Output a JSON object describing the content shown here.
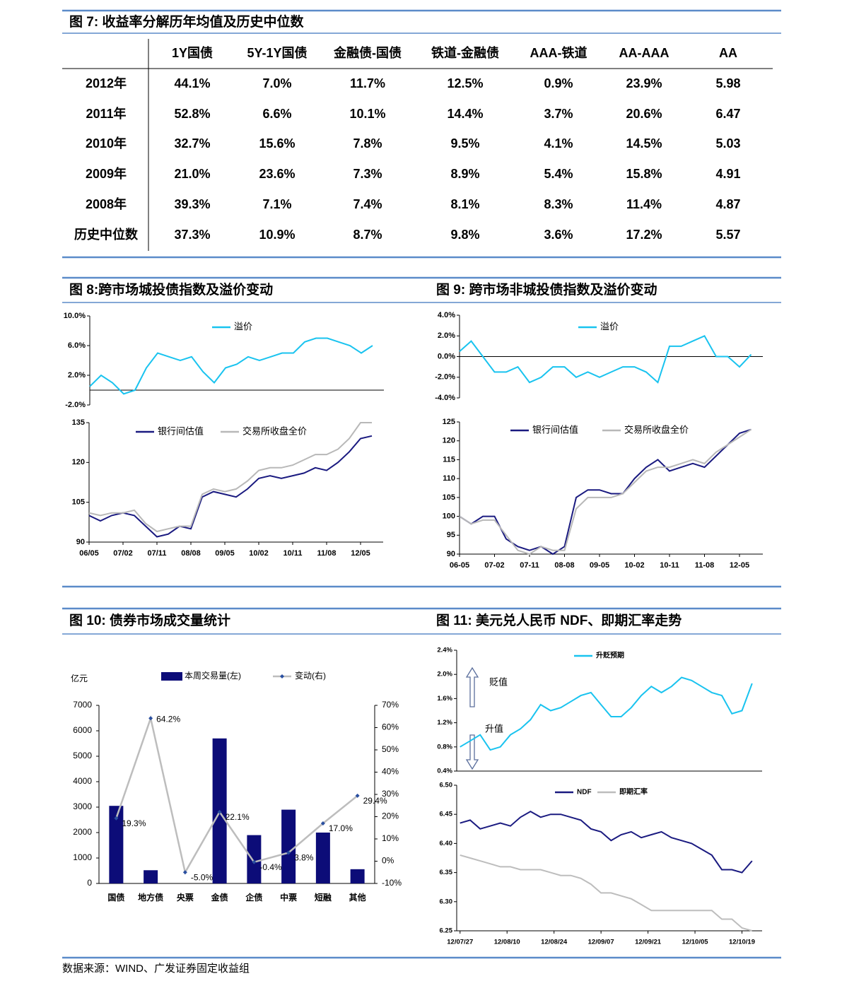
{
  "table": {
    "title": "图 7: 收益率分解历年均值及历史中位数",
    "columns": [
      "1Y国债",
      "5Y-1Y国债",
      "金融债-国债",
      "铁道-金融债",
      "AAA-铁道",
      "AA-AAA",
      "AA"
    ],
    "rows": [
      {
        "label": "2012年",
        "values": [
          "44.1%",
          "7.0%",
          "11.7%",
          "12.5%",
          "0.9%",
          "23.9%",
          "5.98"
        ]
      },
      {
        "label": "2011年",
        "values": [
          "52.8%",
          "6.6%",
          "10.1%",
          "14.4%",
          "3.7%",
          "20.6%",
          "6.47"
        ]
      },
      {
        "label": "2010年",
        "values": [
          "32.7%",
          "15.6%",
          "7.8%",
          "9.5%",
          "4.1%",
          "14.5%",
          "5.03"
        ]
      },
      {
        "label": "2009年",
        "values": [
          "21.0%",
          "23.6%",
          "7.3%",
          "8.9%",
          "5.4%",
          "15.8%",
          "4.91"
        ]
      },
      {
        "label": "2008年",
        "values": [
          "39.3%",
          "7.1%",
          "7.4%",
          "8.1%",
          "8.3%",
          "11.4%",
          "4.87"
        ]
      },
      {
        "label": "历史中位数",
        "values": [
          "37.3%",
          "10.9%",
          "8.7%",
          "9.8%",
          "3.6%",
          "17.2%",
          "5.57"
        ]
      }
    ]
  },
  "chart_data": [
    {
      "type": "line",
      "title": "图 8:跨市场城投债指数及溢价变动",
      "zero_line": true,
      "legend": "top",
      "x": [
        0,
        3,
        6,
        9,
        12,
        15,
        18,
        21,
        24,
        27,
        30,
        33,
        36,
        39,
        42,
        45,
        48,
        51,
        54,
        57,
        60,
        63,
        66,
        69,
        72,
        75
      ],
      "xlim": [
        0,
        78
      ],
      "ylim": [
        -2,
        10
      ],
      "yticks": [
        {
          "value": 10,
          "label": "10.0%"
        },
        {
          "value": 6,
          "label": "6.0%"
        },
        {
          "value": 2,
          "label": "2.0%"
        },
        {
          "value": -2,
          "label": "-2.0%"
        }
      ],
      "series": [
        {
          "name": "溢价",
          "color": "#19c3ef",
          "values": [
            0.5,
            2,
            1,
            -0.5,
            0,
            3,
            5,
            4.5,
            4,
            4.5,
            2.5,
            1,
            3,
            3.5,
            4.5,
            4,
            4.5,
            5,
            5,
            6.5,
            7,
            7,
            6.5,
            6,
            5,
            6
          ]
        }
      ]
    },
    {
      "type": "line",
      "legend": "top",
      "x": [
        0,
        3,
        6,
        9,
        12,
        15,
        18,
        21,
        24,
        27,
        30,
        33,
        36,
        39,
        42,
        45,
        48,
        51,
        54,
        57,
        60,
        63,
        66,
        69,
        72,
        75
      ],
      "xlim": [
        0,
        78
      ],
      "ylim": [
        90,
        135
      ],
      "yticks": [
        135,
        120,
        105,
        90
      ],
      "xticks": [
        {
          "value": 0,
          "label": "06/05"
        },
        {
          "value": 9,
          "label": "07/02"
        },
        {
          "value": 18,
          "label": "07/11"
        },
        {
          "value": 27,
          "label": "08/08"
        },
        {
          "value": 36,
          "label": "09/05"
        },
        {
          "value": 45,
          "label": "10/02"
        },
        {
          "value": 54,
          "label": "10/11"
        },
        {
          "value": 63,
          "label": "11/08"
        },
        {
          "value": 72,
          "label": "12/05"
        }
      ],
      "series": [
        {
          "name": "银行间估值",
          "color": "#1a1a80",
          "values": [
            100,
            98,
            100,
            101,
            100,
            96,
            92,
            93,
            96,
            95,
            107,
            109,
            108,
            107,
            110,
            114,
            115,
            114,
            115,
            116,
            118,
            117,
            120,
            124,
            129,
            130
          ]
        },
        {
          "name": "交易所收盘全价",
          "color": "#b8b8b8",
          "values": [
            101,
            100,
            101,
            101,
            102,
            97,
            94,
            95,
            96,
            96,
            108,
            110,
            109,
            110,
            113,
            117,
            118,
            118,
            119,
            121,
            123,
            123,
            125,
            129,
            135,
            135
          ]
        }
      ]
    },
    {
      "type": "line",
      "title": "图 9: 跨市场非城投债指数及溢价变动",
      "zero_line": true,
      "legend": "top",
      "x": [
        0,
        3,
        6,
        9,
        12,
        15,
        18,
        21,
        24,
        27,
        30,
        33,
        36,
        39,
        42,
        45,
        48,
        51,
        54,
        57,
        60,
        63,
        66,
        69,
        72,
        75
      ],
      "xlim": [
        0,
        78
      ],
      "ylim": [
        -4,
        4
      ],
      "yticks": [
        {
          "value": 4,
          "label": "4.0%"
        },
        {
          "value": 2,
          "label": "2.0%"
        },
        {
          "value": 0,
          "label": "0.0%"
        },
        {
          "value": -2,
          "label": "-2.0%"
        },
        {
          "value": -4,
          "label": "-4.0%"
        }
      ],
      "series": [
        {
          "name": "溢价",
          "color": "#19c3ef",
          "values": [
            0.5,
            1.5,
            0,
            -1.5,
            -1.5,
            -1,
            -2.5,
            -2,
            -1,
            -1,
            -2,
            -1.5,
            -2,
            -1.5,
            -1,
            -1,
            -1.5,
            -2.5,
            1,
            1,
            1.5,
            2,
            0,
            0,
            -1,
            0.2
          ]
        }
      ]
    },
    {
      "type": "line",
      "legend": "top",
      "x": [
        0,
        3,
        6,
        9,
        12,
        15,
        18,
        21,
        24,
        27,
        30,
        33,
        36,
        39,
        42,
        45,
        48,
        51,
        54,
        57,
        60,
        63,
        66,
        69,
        72,
        75
      ],
      "xlim": [
        0,
        78
      ],
      "ylim": [
        90,
        125
      ],
      "yticks": [
        125,
        120,
        115,
        110,
        105,
        100,
        95,
        90
      ],
      "xticks": [
        {
          "value": 0,
          "label": "06-05"
        },
        {
          "value": 9,
          "label": "07-02"
        },
        {
          "value": 18,
          "label": "07-11"
        },
        {
          "value": 27,
          "label": "08-08"
        },
        {
          "value": 36,
          "label": "09-05"
        },
        {
          "value": 45,
          "label": "10-02"
        },
        {
          "value": 54,
          "label": "10-11"
        },
        {
          "value": 63,
          "label": "11-08"
        },
        {
          "value": 72,
          "label": "12-05"
        }
      ],
      "series": [
        {
          "name": "银行间估值",
          "color": "#1a1a80",
          "values": [
            100,
            98,
            100,
            100,
            94,
            92,
            91,
            92,
            90,
            92,
            105,
            107,
            107,
            106,
            106,
            110,
            113,
            115,
            112,
            113,
            114,
            113,
            116,
            119,
            122,
            123
          ]
        },
        {
          "name": "交易所收盘全价",
          "color": "#b8b8b8",
          "values": [
            100,
            98,
            99,
            99,
            95,
            91,
            90,
            92,
            91,
            91,
            102,
            105,
            105,
            105,
            106,
            109,
            112,
            113,
            113,
            114,
            115,
            114,
            117,
            119,
            121,
            123
          ]
        }
      ]
    },
    {
      "type": "bar",
      "title": "图 10: 债券市场成交量统计",
      "ylabel": "亿元",
      "legend": "top",
      "categories": [
        "国债",
        "地方债",
        "央票",
        "金债",
        "企债",
        "中票",
        "短融",
        "其他"
      ],
      "ylim": [
        0,
        7000
      ],
      "yticks": [
        7000,
        6000,
        5000,
        4000,
        3000,
        2000,
        1000,
        0
      ],
      "y2lim": [
        -10,
        70
      ],
      "y2ticks": [
        {
          "value": 70,
          "label": "70%"
        },
        {
          "value": 60,
          "label": "60%"
        },
        {
          "value": 50,
          "label": "50%"
        },
        {
          "value": 40,
          "label": "40%"
        },
        {
          "value": 30,
          "label": "30%"
        },
        {
          "value": 20,
          "label": "20%"
        },
        {
          "value": 10,
          "label": "10%"
        },
        {
          "value": 0,
          "label": "0%"
        },
        {
          "value": -10,
          "label": "-10%"
        }
      ],
      "series": [
        {
          "name": "本周交易量(左)",
          "color": "#0c0c78",
          "values": [
            3050,
            520,
            0,
            5700,
            1900,
            2900,
            2000,
            560
          ]
        },
        {
          "name": "变动(右)",
          "color": "#bdbdbd",
          "marker_color": "#2a4fa0",
          "axis": "y2",
          "values": [
            19.3,
            64.2,
            -5.0,
            22.1,
            -0.4,
            3.8,
            17.0,
            29.4
          ],
          "value_labels": [
            "19.3%",
            "64.2%",
            "-5.0%",
            "22.1%",
            "-0.4%",
            "3.8%",
            "17.0%",
            "29.4%"
          ]
        }
      ]
    },
    {
      "type": "line",
      "title": "图 11: 美元兑人民币 NDF、即期汇率走势",
      "legend": "top",
      "annotations": [
        "贬值",
        "升值"
      ],
      "x": [
        0,
        3,
        6,
        9,
        12,
        15,
        18,
        21,
        24,
        27,
        30,
        33,
        36,
        39,
        42,
        45,
        48,
        51,
        54,
        57,
        60,
        63,
        66,
        69,
        72,
        75,
        78,
        81,
        84,
        87
      ],
      "xlim": [
        -1,
        90
      ],
      "ylim": [
        0.4,
        2.4
      ],
      "yticks": [
        {
          "value": 2.4,
          "label": "2.4%"
        },
        {
          "value": 2.0,
          "label": "2.0%"
        },
        {
          "value": 1.6,
          "label": "1.6%"
        },
        {
          "value": 1.2,
          "label": "1.2%"
        },
        {
          "value": 0.8,
          "label": "0.8%"
        },
        {
          "value": 0.4,
          "label": "0.4%"
        }
      ],
      "series": [
        {
          "name": "升贬预期",
          "color": "#19c3ef",
          "values": [
            0.8,
            0.9,
            1.0,
            0.75,
            0.8,
            1.0,
            1.1,
            1.25,
            1.5,
            1.4,
            1.45,
            1.55,
            1.65,
            1.7,
            1.5,
            1.3,
            1.3,
            1.45,
            1.65,
            1.8,
            1.7,
            1.8,
            1.95,
            1.9,
            1.8,
            1.7,
            1.65,
            1.35,
            1.4,
            1.85
          ]
        }
      ]
    },
    {
      "type": "line",
      "legend": "top",
      "x": [
        0,
        3,
        6,
        9,
        12,
        15,
        18,
        21,
        24,
        27,
        30,
        33,
        36,
        39,
        42,
        45,
        48,
        51,
        54,
        57,
        60,
        63,
        66,
        69,
        72,
        75,
        78,
        81,
        84,
        87
      ],
      "xlim": [
        -1,
        90
      ],
      "ylim": [
        6.25,
        6.5
      ],
      "yticks": [
        {
          "value": 6.5,
          "label": "6.50"
        },
        {
          "value": 6.45,
          "label": "6.45"
        },
        {
          "value": 6.4,
          "label": "6.40"
        },
        {
          "value": 6.35,
          "label": "6.35"
        },
        {
          "value": 6.3,
          "label": "6.30"
        },
        {
          "value": 6.25,
          "label": "6.25"
        }
      ],
      "xticks": [
        {
          "value": 0,
          "label": "12/07/27"
        },
        {
          "value": 14,
          "label": "12/08/10"
        },
        {
          "value": 28,
          "label": "12/08/24"
        },
        {
          "value": 42,
          "label": "12/09/07"
        },
        {
          "value": 56,
          "label": "12/09/21"
        },
        {
          "value": 70,
          "label": "12/10/05"
        },
        {
          "value": 84,
          "label": "12/10/19"
        }
      ],
      "series": [
        {
          "name": "NDF",
          "color": "#1a1a80",
          "values": [
            6.435,
            6.44,
            6.425,
            6.43,
            6.435,
            6.43,
            6.445,
            6.455,
            6.445,
            6.45,
            6.45,
            6.445,
            6.44,
            6.425,
            6.42,
            6.405,
            6.415,
            6.42,
            6.41,
            6.415,
            6.42,
            6.41,
            6.405,
            6.4,
            6.39,
            6.38,
            6.355,
            6.355,
            6.35,
            6.37
          ]
        },
        {
          "name": "即期汇率",
          "color": "#bdbdbd",
          "values": [
            6.38,
            6.375,
            6.37,
            6.365,
            6.36,
            6.36,
            6.355,
            6.355,
            6.355,
            6.35,
            6.345,
            6.345,
            6.34,
            6.33,
            6.315,
            6.315,
            6.31,
            6.305,
            6.295,
            6.285,
            6.285,
            6.285,
            6.285,
            6.285,
            6.285,
            6.285,
            6.27,
            6.27,
            6.255,
            6.25
          ]
        }
      ]
    }
  ],
  "source": "数据来源：WIND、广发证券固定收益组"
}
